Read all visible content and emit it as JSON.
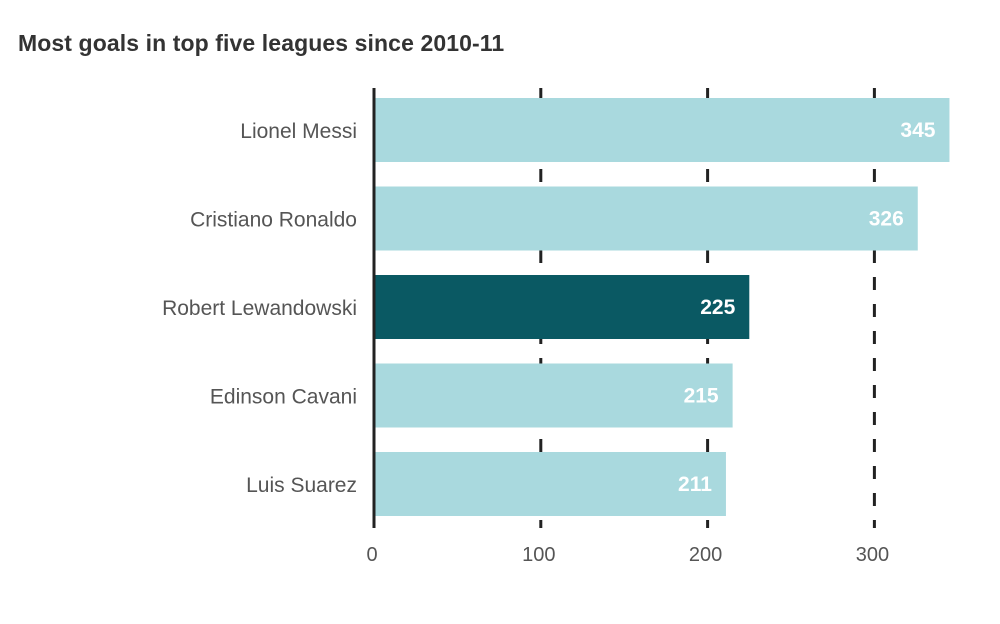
{
  "title": "Most goals in top five leagues since 2010-11",
  "colors": {
    "bar": "#a9d9de",
    "highlight": "#0a5963",
    "axis": "#222222",
    "gridline": "#222222",
    "label_text": "#555555",
    "value_text": "#ffffff"
  },
  "chart_data": {
    "type": "bar",
    "orientation": "horizontal",
    "title": "Most goals in top five leagues since 2010-11",
    "xlabel": "",
    "ylabel": "",
    "xlim": [
      0,
      345
    ],
    "grid": "vertical dashed",
    "categories": [
      "Lionel Messi",
      "Cristiano Ronaldo",
      "Robert Lewandowski",
      "Edinson Cavani",
      "Luis Suarez"
    ],
    "values": [
      345,
      326,
      225,
      215,
      211
    ],
    "highlighted": [
      "Robert Lewandowski"
    ],
    "xticks": [
      0,
      100,
      200,
      300
    ],
    "data_labels": [
      "345",
      "326",
      "225",
      "215",
      "211"
    ]
  }
}
